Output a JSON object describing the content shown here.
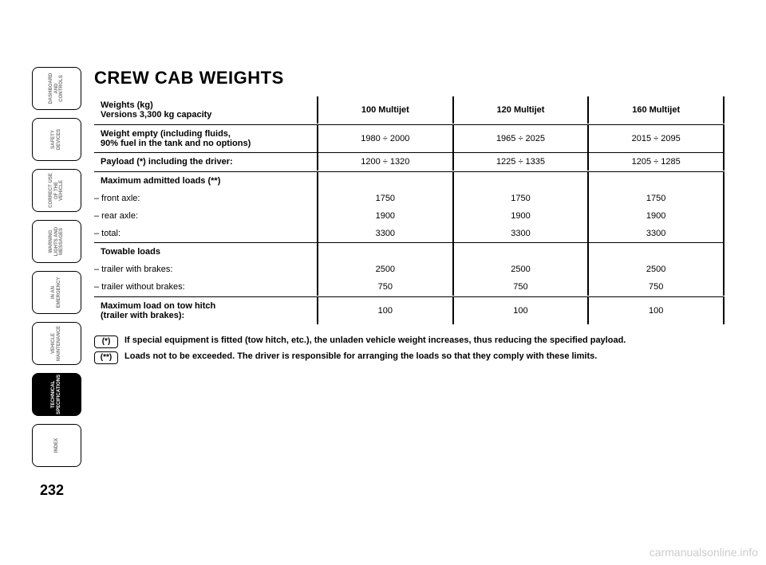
{
  "page_number": "232",
  "watermark": "carmanualsonline.info",
  "tabs": [
    {
      "label": "DASHBOARD AND CONTROLS",
      "active": false
    },
    {
      "label": "SAFETY DEVICES",
      "active": false
    },
    {
      "label": "CORRECT USE OF THE VEHICLE",
      "active": false
    },
    {
      "label": "WARNING LIGHTS AND MESSAGES",
      "active": false
    },
    {
      "label": "IN AN EMERGENCY",
      "active": false
    },
    {
      "label": "VEHICLE MAINTENANCE",
      "active": false
    },
    {
      "label": "TECHNICAL SPECIFICATIONS",
      "active": true
    },
    {
      "label": "INDEX",
      "active": false
    }
  ],
  "title": "CREW CAB WEIGHTS",
  "header": {
    "label_line1": "Weights (kg)",
    "label_line2": "Versions 3,300 kg capacity",
    "col1": "100 Multijet",
    "col2": "120 Multijet",
    "col3": "160 Multijet"
  },
  "rows": {
    "empty": {
      "label_line1": "Weight empty (including fluids,",
      "label_line2": "90% fuel in the tank and no options)",
      "col1": "1980 ÷ 2000",
      "col2": "1965 ÷ 2025",
      "col3": "2015 ÷ 2095"
    },
    "payload": {
      "label": "Payload (*) including the driver:",
      "col1": "1200 ÷ 1320",
      "col2": "1225 ÷ 1335",
      "col3": "1205 ÷ 1285"
    },
    "max_loads": {
      "label": "Maximum admitted loads (**)",
      "front_label": "– front axle:",
      "front": {
        "col1": "1750",
        "col2": "1750",
        "col3": "1750"
      },
      "rear_label": "– rear axle:",
      "rear": {
        "col1": "1900",
        "col2": "1900",
        "col3": "1900"
      },
      "total_label": "– total:",
      "total": {
        "col1": "3300",
        "col2": "3300",
        "col3": "3300"
      }
    },
    "towable": {
      "label": "Towable loads",
      "with_label": "– trailer with brakes:",
      "with": {
        "col1": "2500",
        "col2": "2500",
        "col3": "2500"
      },
      "without_label": "– trailer without brakes:",
      "without": {
        "col1": "750",
        "col2": "750",
        "col3": "750"
      }
    },
    "hitch": {
      "label_line1": "Maximum load on tow hitch",
      "label_line2": "(trailer with brakes):",
      "col1": "100",
      "col2": "100",
      "col3": "100"
    }
  },
  "footnotes": {
    "f1_marker": "(*)",
    "f1_text": "If special equipment is fitted (tow hitch, etc.), the unladen vehicle weight increases, thus reducing the specified payload.",
    "f2_marker": "(**)",
    "f2_text": "Loads not to be exceeded. The driver is responsible for arranging the loads so that they comply with these limits."
  }
}
